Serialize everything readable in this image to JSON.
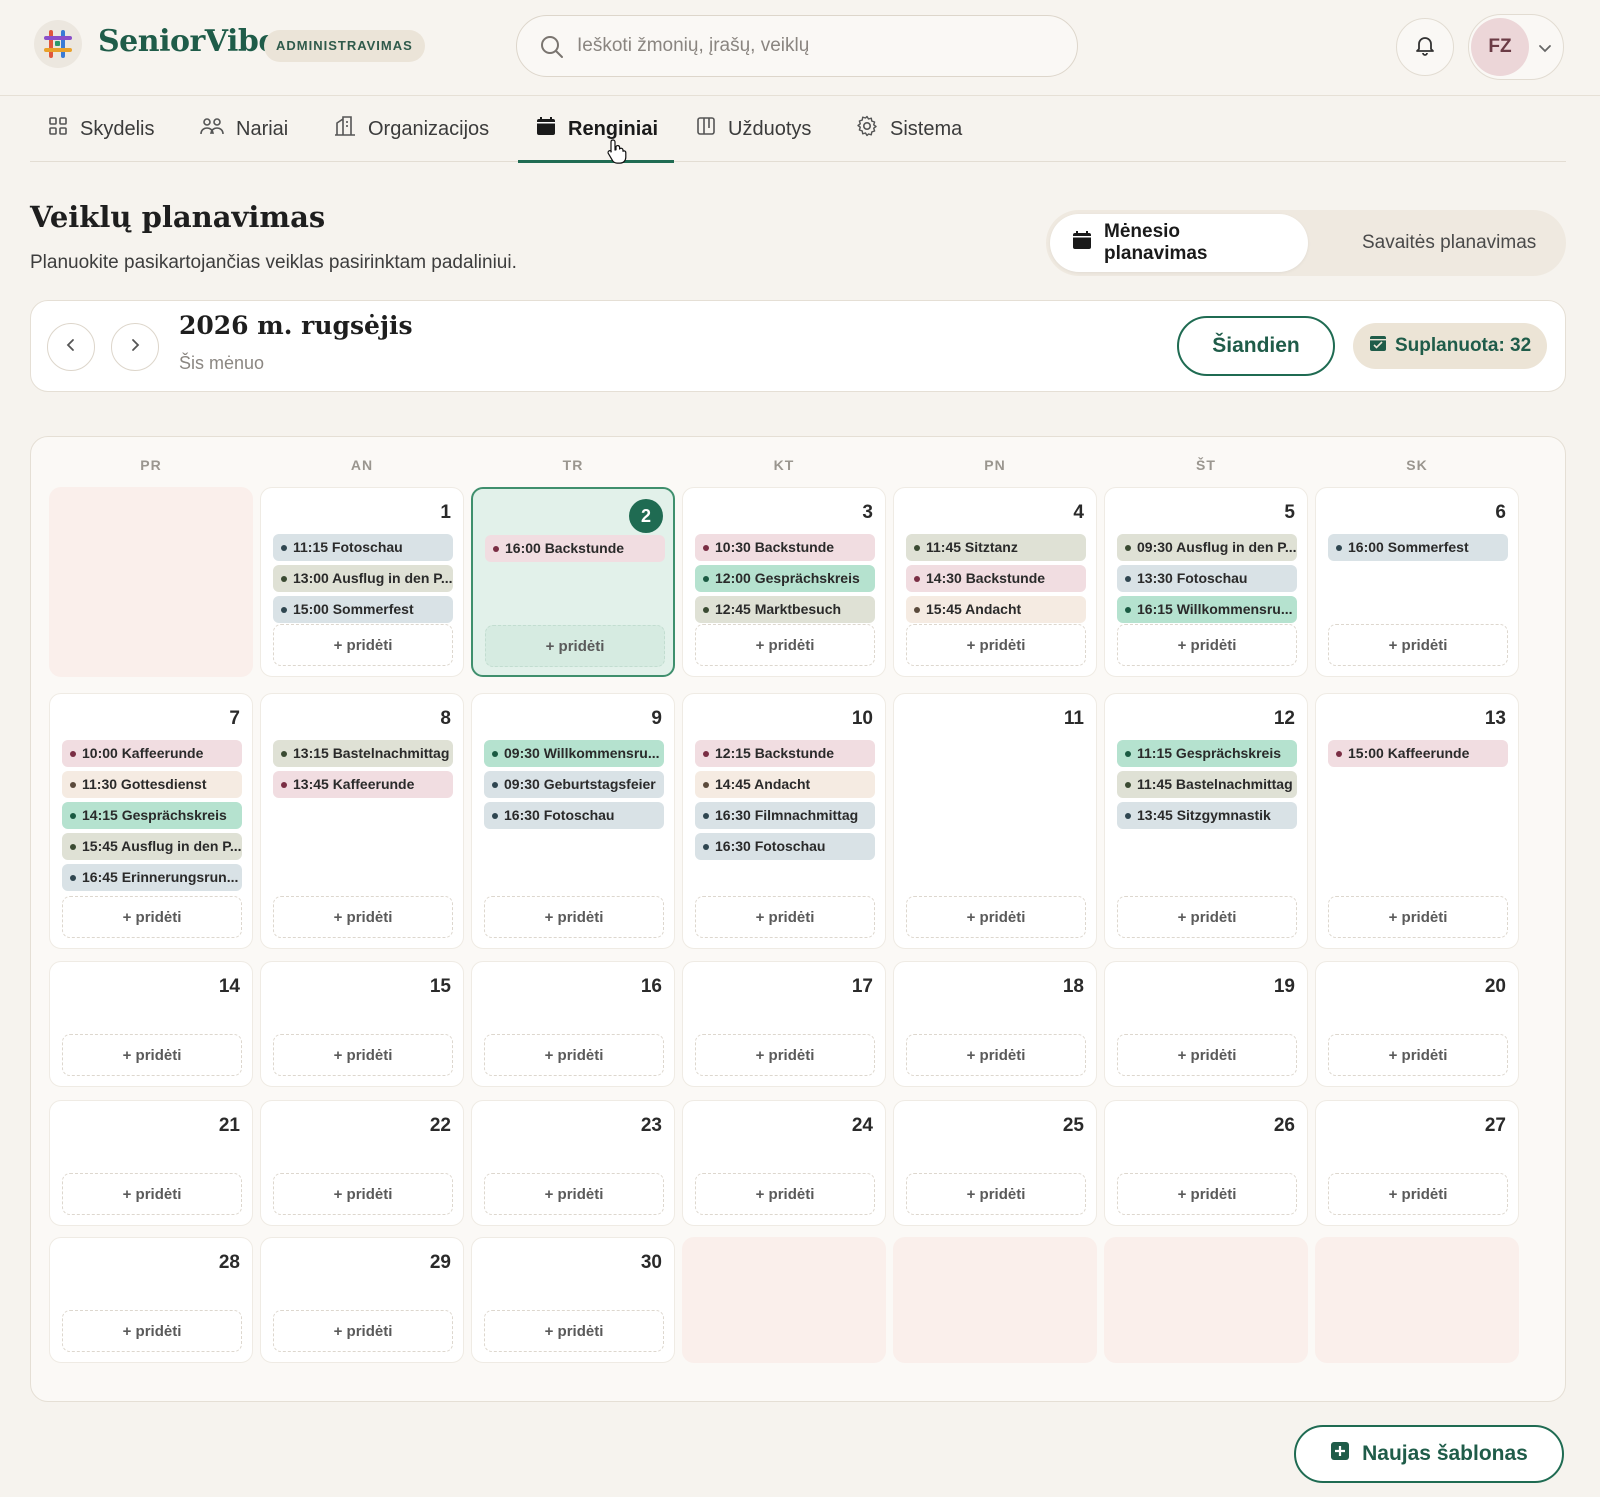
{
  "app": {
    "brand": "SeniorVibe",
    "badge": "ADMINISTRAVIMAS",
    "search_placeholder": "Ieškoti žmonių, įrašų, veiklų",
    "user_initials": "FZ"
  },
  "nav": [
    {
      "label": "Skydelis",
      "icon": "dashboard-grid-icon"
    },
    {
      "label": "Nariai",
      "icon": "people-icon"
    },
    {
      "label": "Organizacijos",
      "icon": "building-icon"
    },
    {
      "label": "Renginiai",
      "icon": "calendar-icon",
      "active": true
    },
    {
      "label": "Užduotys",
      "icon": "kanban-icon"
    },
    {
      "label": "Sistema",
      "icon": "gear-icon"
    }
  ],
  "page": {
    "title": "Veiklų planavimas",
    "subtitle": "Planuokite pasikartojančias veiklas pasirinktam padaliniui.",
    "view_month": "Mėnesio planavimas",
    "view_week": "Savaitės planavimas"
  },
  "month_bar": {
    "title": "2026 m. rugsėjis",
    "subtitle": "Šis mėnuo",
    "today_label": "Šiandien",
    "planned_label": "Suplanuota: 32"
  },
  "calendar": {
    "weekdays": [
      "PR",
      "AN",
      "TR",
      "KT",
      "PN",
      "ŠT",
      "SK"
    ],
    "add_label": "+ pridėti",
    "weeks": [
      [
        null,
        {
          "day": "1",
          "events": [
            {
              "text": "11:15 Fotoschau",
              "color": "blue"
            },
            {
              "text": "13:00 Ausflug in den P...",
              "color": "sage"
            },
            {
              "text": "15:00 Sommerfest",
              "color": "blue"
            }
          ]
        },
        {
          "day": "2",
          "today": true,
          "events": [
            {
              "text": "16:00 Backstunde",
              "color": "pink"
            }
          ]
        },
        {
          "day": "3",
          "events": [
            {
              "text": "10:30 Backstunde",
              "color": "pink"
            },
            {
              "text": "12:00 Gesprächskreis",
              "color": "green"
            },
            {
              "text": "12:45 Marktbesuch",
              "color": "sage"
            }
          ]
        },
        {
          "day": "4",
          "events": [
            {
              "text": "11:45 Sitztanz",
              "color": "sage"
            },
            {
              "text": "14:30 Backstunde",
              "color": "pink"
            },
            {
              "text": "15:45 Andacht",
              "color": "cream"
            }
          ]
        },
        {
          "day": "5",
          "events": [
            {
              "text": "09:30 Ausflug in den P...",
              "color": "sage"
            },
            {
              "text": "13:30 Fotoschau",
              "color": "blue"
            },
            {
              "text": "16:15 Willkommensru...",
              "color": "green"
            }
          ]
        },
        {
          "day": "6",
          "events": [
            {
              "text": "16:00 Sommerfest",
              "color": "blue"
            }
          ]
        }
      ],
      [
        {
          "day": "7",
          "events": [
            {
              "text": "10:00 Kaffeerunde",
              "color": "pink"
            },
            {
              "text": "11:30 Gottesdienst",
              "color": "cream"
            },
            {
              "text": "14:15 Gesprächskreis",
              "color": "green"
            },
            {
              "text": "15:45 Ausflug in den P...",
              "color": "sage"
            },
            {
              "text": "16:45 Erinnerungsrun...",
              "color": "blue"
            }
          ]
        },
        {
          "day": "8",
          "events": [
            {
              "text": "13:15 Bastelnachmittag",
              "color": "sage"
            },
            {
              "text": "13:45 Kaffeerunde",
              "color": "pink"
            }
          ]
        },
        {
          "day": "9",
          "events": [
            {
              "text": "09:30 Willkommensru...",
              "color": "green"
            },
            {
              "text": "09:30 Geburtstagsfeier",
              "color": "blue"
            },
            {
              "text": "16:30 Fotoschau",
              "color": "blue"
            }
          ]
        },
        {
          "day": "10",
          "events": [
            {
              "text": "12:15 Backstunde",
              "color": "pink"
            },
            {
              "text": "14:45 Andacht",
              "color": "cream"
            },
            {
              "text": "16:30 Filmnachmittag",
              "color": "blue"
            },
            {
              "text": "16:30 Fotoschau",
              "color": "blue"
            }
          ]
        },
        {
          "day": "11",
          "events": []
        },
        {
          "day": "12",
          "events": [
            {
              "text": "11:15 Gesprächskreis",
              "color": "green"
            },
            {
              "text": "11:45 Bastelnachmittag",
              "color": "sage"
            },
            {
              "text": "13:45 Sitzgymnastik",
              "color": "blue"
            }
          ]
        },
        {
          "day": "13",
          "events": [
            {
              "text": "15:00 Kaffeerunde",
              "color": "pink"
            }
          ]
        }
      ],
      [
        {
          "day": "14",
          "events": []
        },
        {
          "day": "15",
          "events": []
        },
        {
          "day": "16",
          "events": []
        },
        {
          "day": "17",
          "events": []
        },
        {
          "day": "18",
          "events": []
        },
        {
          "day": "19",
          "events": []
        },
        {
          "day": "20",
          "events": []
        }
      ],
      [
        {
          "day": "21",
          "events": []
        },
        {
          "day": "22",
          "events": []
        },
        {
          "day": "23",
          "events": []
        },
        {
          "day": "24",
          "events": []
        },
        {
          "day": "25",
          "events": []
        },
        {
          "day": "26",
          "events": []
        },
        {
          "day": "27",
          "events": []
        }
      ],
      [
        {
          "day": "28",
          "events": []
        },
        {
          "day": "29",
          "events": []
        },
        {
          "day": "30",
          "events": []
        },
        null,
        null,
        null,
        null
      ]
    ]
  },
  "footer": {
    "new_template_label": "Naujas šablonas"
  },
  "colors": {
    "accent": "#1f6b52",
    "brand": "#1f5c49",
    "background": "#f6f3ee"
  }
}
